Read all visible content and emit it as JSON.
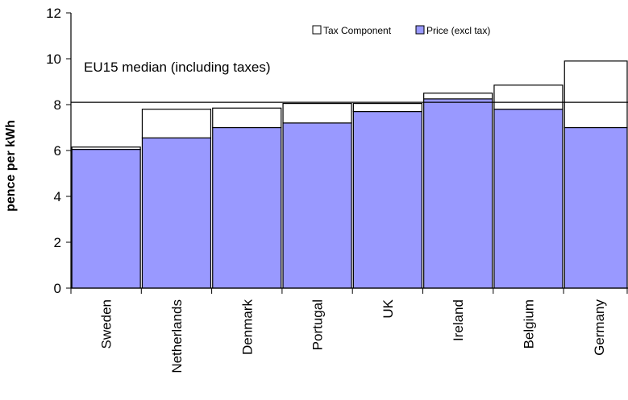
{
  "chart_data": {
    "type": "bar",
    "stacked": true,
    "categories": [
      "Sweden",
      "Netherlands",
      "Denmark",
      "Portugal",
      "UK",
      "Ireland",
      "Belgium",
      "Germany"
    ],
    "series": [
      {
        "name": "Price (excl tax)",
        "color": "#9999ff",
        "values": [
          6.05,
          6.55,
          7.0,
          7.2,
          7.7,
          8.25,
          7.8,
          7.0
        ]
      },
      {
        "name": "Tax Component",
        "color": "#ffffff",
        "values": [
          0.1,
          1.25,
          0.85,
          0.85,
          0.35,
          0.25,
          1.05,
          2.9
        ]
      }
    ],
    "ylabel": "pence per kWh",
    "ylim": [
      0,
      12
    ],
    "yticks": [
      0,
      2,
      4,
      6,
      8,
      10,
      12
    ],
    "legend_position": "top-right",
    "reference_line": {
      "label": "EU15 median (including taxes)",
      "value": 8.1
    }
  }
}
